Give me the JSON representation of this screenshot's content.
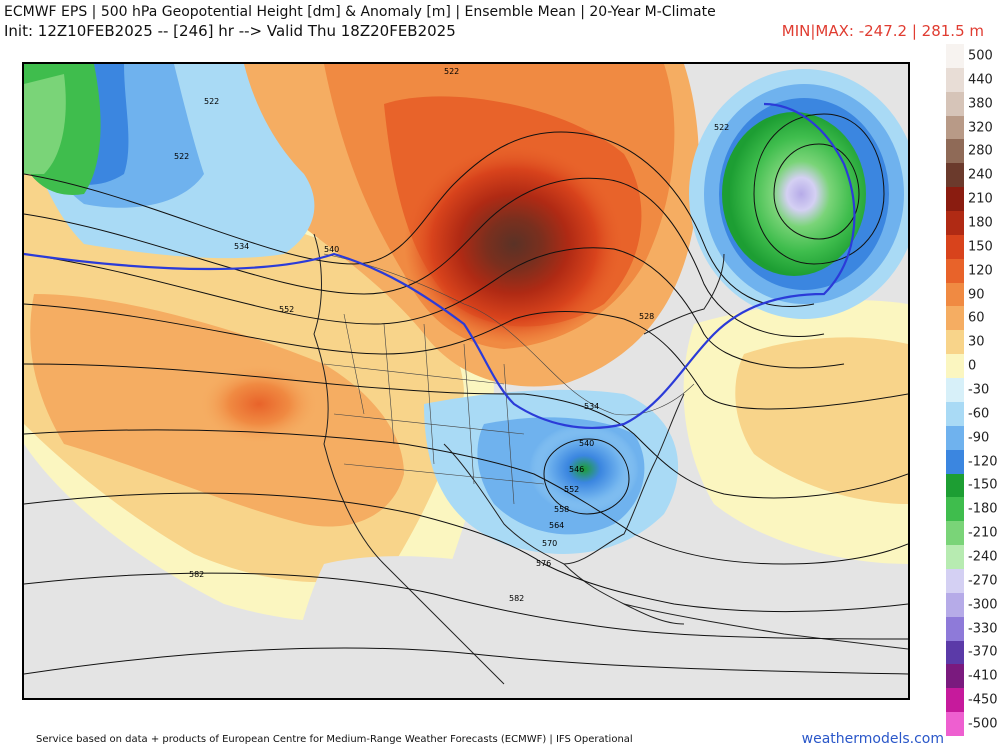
{
  "header": {
    "title": "ECMWF EPS | 500 hPa Geopotential Height [dm] & Anomaly [m] | Ensemble Mean | 20-Year M-Climate",
    "init": "Init: 12Z10FEB2025 -- [246] hr --> Valid Thu 18Z20FEB2025",
    "minmax": "MIN|MAX: -247.2 | 281.5 m"
  },
  "map": {
    "contour_labels": [
      "522",
      "522",
      "522",
      "522",
      "534",
      "540",
      "552",
      "528",
      "534",
      "540",
      "546",
      "552",
      "558",
      "564",
      "570",
      "576",
      "582",
      "582"
    ]
  },
  "colorbar": {
    "ticks": [
      "500",
      "440",
      "380",
      "320",
      "280",
      "240",
      "210",
      "180",
      "150",
      "120",
      "90",
      "60",
      "30",
      "0",
      "-30",
      "-60",
      "-90",
      "-120",
      "-150",
      "-180",
      "-210",
      "-240",
      "-270",
      "-300",
      "-330",
      "-370",
      "-410",
      "-450",
      "-500"
    ],
    "colors": [
      "#f7f3f0",
      "#e8ddd6",
      "#d6c4b8",
      "#b89a87",
      "#8f6a57",
      "#6b3a2c",
      "#8a1c10",
      "#b02a14",
      "#d8431c",
      "#e8632a",
      "#f08a42",
      "#f5ad62",
      "#f8d48a",
      "#fbf6c0",
      "#d7f0f9",
      "#a9daf5",
      "#6fb2ee",
      "#3b86e0",
      "#1d9e33",
      "#3fbd4d",
      "#7ad478",
      "#b7ebb1",
      "#d4d0f3",
      "#b6abe8",
      "#8e7ad9",
      "#5b3aa8",
      "#7a1a7e",
      "#c61a9c",
      "#ee5fd0"
    ]
  },
  "footer": {
    "attribution": "Service based on data + products of European Centre for Medium-Range Weather Forecasts (ECMWF) | IFS Operational",
    "brand": "weathermodels.com"
  }
}
